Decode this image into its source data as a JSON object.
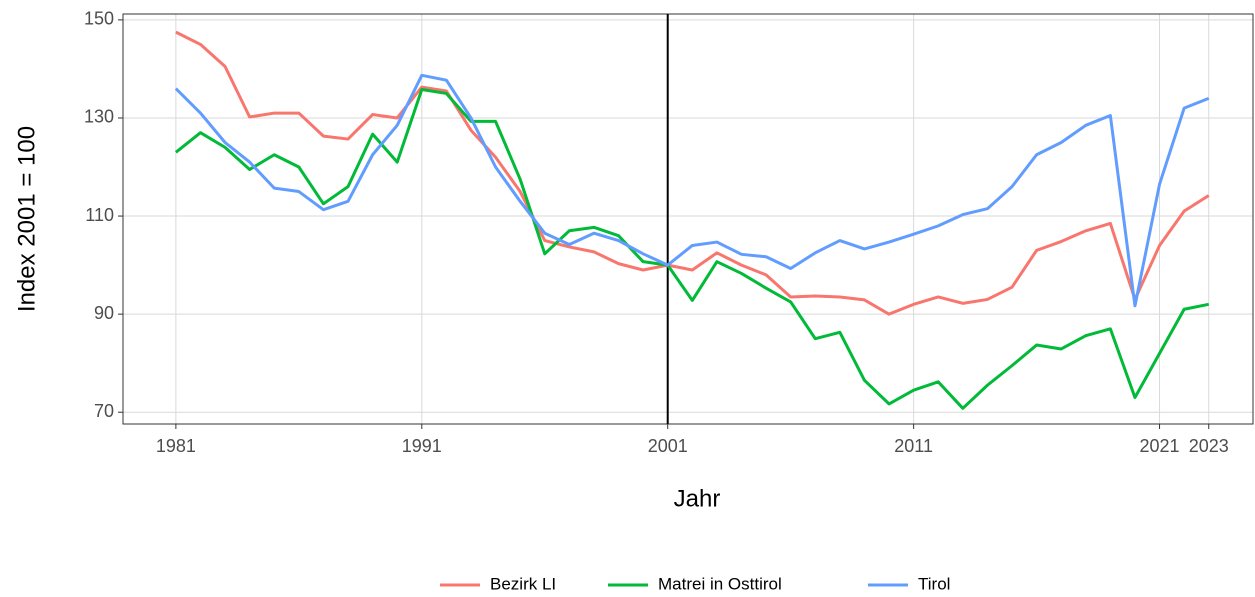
{
  "chart_data": {
    "type": "line",
    "x_label": "Jahr",
    "y_label": "Index 2001 = 100",
    "x": [
      1981,
      1982,
      1983,
      1984,
      1985,
      1986,
      1987,
      1988,
      1989,
      1990,
      1991,
      1992,
      1993,
      1994,
      1995,
      1996,
      1997,
      1998,
      1999,
      2000,
      2001,
      2002,
      2003,
      2004,
      2005,
      2006,
      2007,
      2008,
      2009,
      2010,
      2011,
      2012,
      2013,
      2014,
      2015,
      2016,
      2017,
      2018,
      2019,
      2020,
      2021,
      2022,
      2023
    ],
    "series": [
      {
        "name": "Bezirk LI",
        "color": "#f8766d",
        "values": [
          147.5,
          145,
          140.5,
          130.2,
          131,
          131,
          126.3,
          125.7,
          130.7,
          130,
          136.3,
          135.5,
          127.5,
          122,
          115,
          105,
          103.7,
          102.7,
          100.3,
          99,
          100,
          99,
          102.5,
          100,
          98,
          93.5,
          93.7,
          93.5,
          92.9,
          90,
          92,
          93.5,
          92.2,
          93,
          95.5,
          103,
          104.8,
          107,
          108.5,
          93,
          104,
          111,
          114.2
        ]
      },
      {
        "name": "Matrei in Osttirol",
        "color": "#00ba38",
        "values": [
          123,
          127,
          124,
          119.5,
          122.5,
          120,
          112.5,
          116,
          126.7,
          121,
          135.8,
          135,
          129.3,
          129.3,
          117.5,
          102.3,
          107,
          107.7,
          106,
          100.7,
          100,
          92.8,
          100.7,
          98.3,
          95.3,
          92.5,
          85,
          86.3,
          76.5,
          71.7,
          74.5,
          76.2,
          70.8,
          75.5,
          79.5,
          83.7,
          82.9,
          85.6,
          87,
          73,
          82,
          91,
          92
        ]
      },
      {
        "name": "Tirol",
        "color": "#619cff",
        "values": [
          136,
          131,
          125,
          121,
          115.7,
          115,
          111.3,
          113,
          122.5,
          128.5,
          138.7,
          137.7,
          130,
          120,
          113,
          106.5,
          104.2,
          106.5,
          105,
          102.3,
          100,
          104,
          104.7,
          102.2,
          101.7,
          99.3,
          102.5,
          105,
          103.3,
          104.7,
          106.3,
          108,
          110.3,
          111.5,
          116,
          122.5,
          125,
          128.5,
          130.5,
          91.7,
          116.5,
          132,
          134
        ]
      }
    ],
    "xlim": [
      1978.85,
      2024.8
    ],
    "xticks": [
      1981,
      1991,
      2001,
      2011,
      2021,
      2023
    ],
    "ylim": [
      67.6,
      151.2
    ],
    "yticks": [
      70,
      90,
      110,
      130,
      150
    ],
    "vline": 2001,
    "grid": true,
    "legend": "bottom"
  }
}
